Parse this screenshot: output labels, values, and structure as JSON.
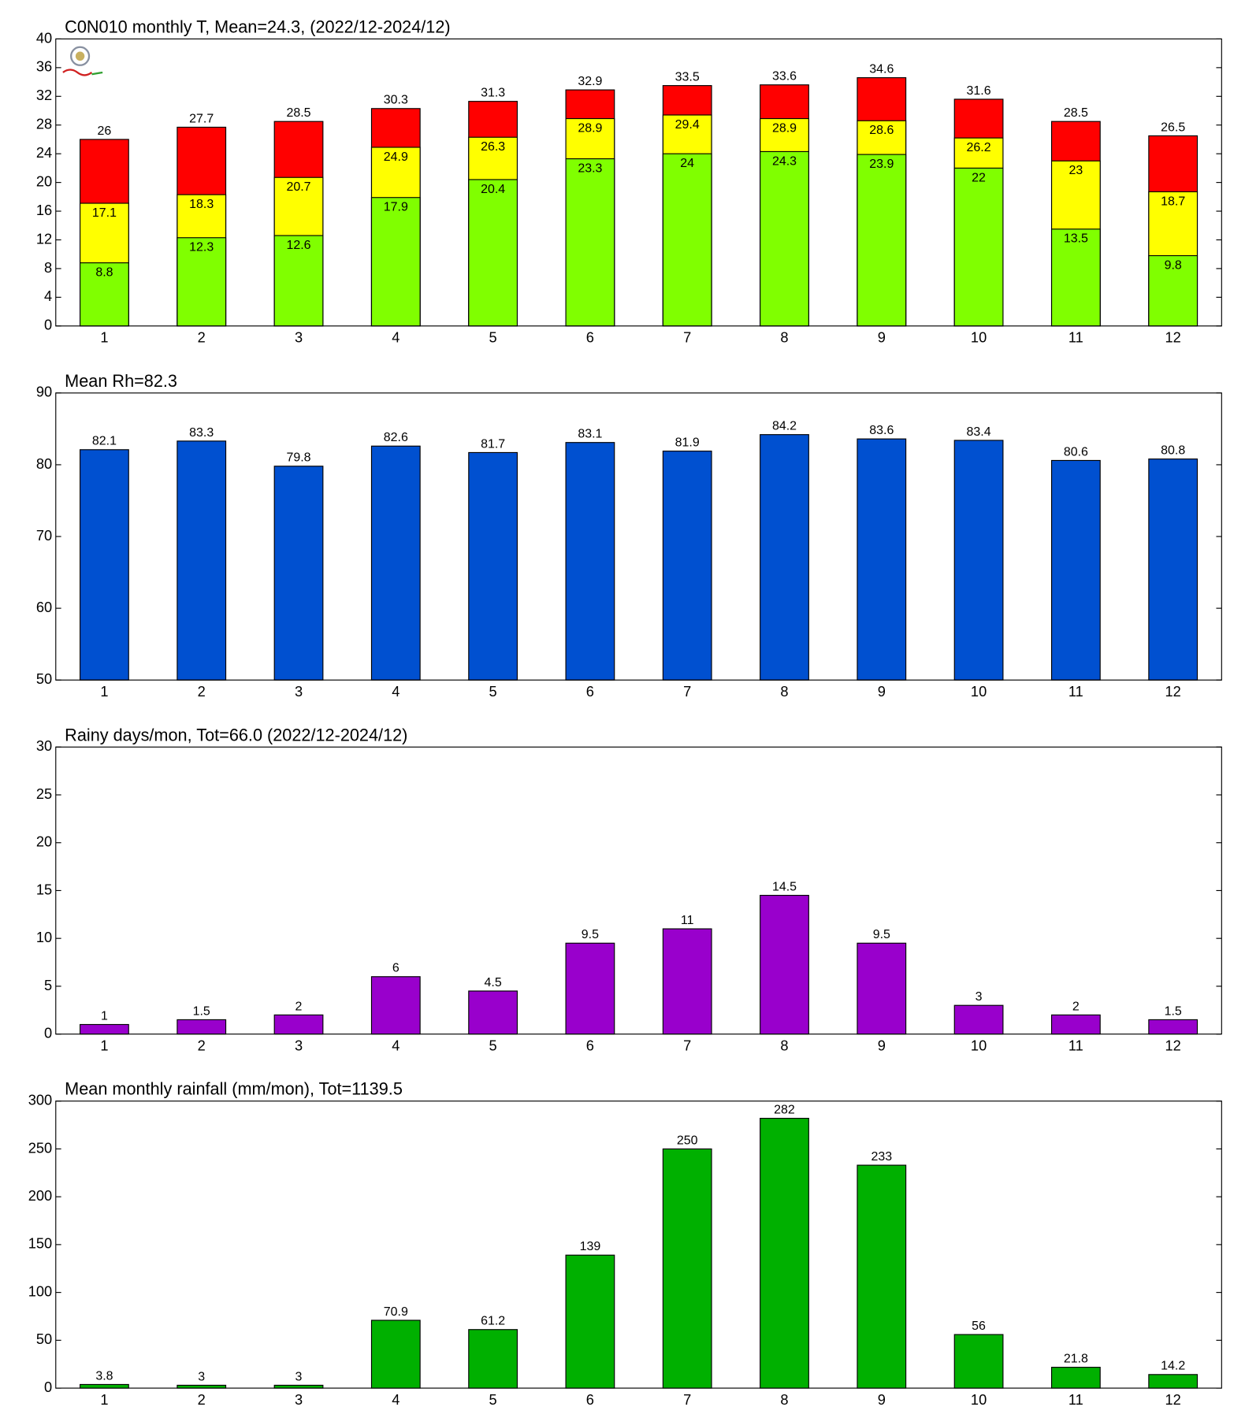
{
  "chart_data": [
    {
      "type": "bar",
      "title": "C0N010 monthly T, Mean=24.3, (2022/12-2024/12)",
      "categories": [
        "1",
        "2",
        "3",
        "4",
        "5",
        "6",
        "7",
        "8",
        "9",
        "10",
        "11",
        "12"
      ],
      "series": [
        {
          "color": "#ff0000",
          "values": [
            26,
            27.7,
            28.5,
            30.3,
            31.3,
            32.9,
            33.5,
            33.6,
            34.6,
            31.6,
            28.5,
            26.5
          ]
        },
        {
          "color": "#ffff00",
          "values": [
            17.1,
            18.3,
            20.7,
            24.9,
            26.3,
            28.9,
            29.4,
            28.9,
            28.6,
            26.2,
            23,
            18.7
          ]
        },
        {
          "color": "#80ff00",
          "values": [
            8.8,
            12.3,
            12.6,
            17.9,
            20.4,
            23.3,
            24,
            24.3,
            23.9,
            22,
            13.5,
            9.8
          ]
        }
      ],
      "ylim": [
        0,
        40
      ],
      "yticks": [
        0,
        4,
        8,
        12,
        16,
        20,
        24,
        28,
        32,
        36,
        40
      ]
    },
    {
      "type": "bar",
      "title": "Mean Rh=82.3",
      "categories": [
        "1",
        "2",
        "3",
        "4",
        "5",
        "6",
        "7",
        "8",
        "9",
        "10",
        "11",
        "12"
      ],
      "series": [
        {
          "color": "#0050d0",
          "values": [
            82.1,
            83.3,
            79.8,
            82.6,
            81.7,
            83.1,
            81.9,
            84.2,
            83.6,
            83.4,
            80.6,
            80.8
          ]
        }
      ],
      "ylim": [
        50,
        90
      ],
      "yticks": [
        50,
        60,
        70,
        80,
        90
      ]
    },
    {
      "type": "bar",
      "title": "Rainy days/mon, Tot=66.0 (2022/12-2024/12)",
      "categories": [
        "1",
        "2",
        "3",
        "4",
        "5",
        "6",
        "7",
        "8",
        "9",
        "10",
        "11",
        "12"
      ],
      "series": [
        {
          "color": "#9900cc",
          "values": [
            1,
            1.5,
            2,
            6,
            4.5,
            9.5,
            11,
            14.5,
            9.5,
            3,
            2,
            1.5
          ]
        }
      ],
      "ylim": [
        0,
        30
      ],
      "yticks": [
        0,
        5,
        10,
        15,
        20,
        25,
        30
      ]
    },
    {
      "type": "bar",
      "title": "Mean monthly rainfall (mm/mon), Tot=1139.5",
      "categories": [
        "1",
        "2",
        "3",
        "4",
        "5",
        "6",
        "7",
        "8",
        "9",
        "10",
        "11",
        "12"
      ],
      "series": [
        {
          "color": "#00b000",
          "values": [
            3.8,
            3,
            3,
            70.9,
            61.2,
            139,
            250,
            282,
            233,
            56,
            21.8,
            14.2
          ]
        }
      ],
      "ylim": [
        0,
        300
      ],
      "yticks": [
        0,
        50,
        100,
        150,
        200,
        250,
        300
      ]
    }
  ]
}
